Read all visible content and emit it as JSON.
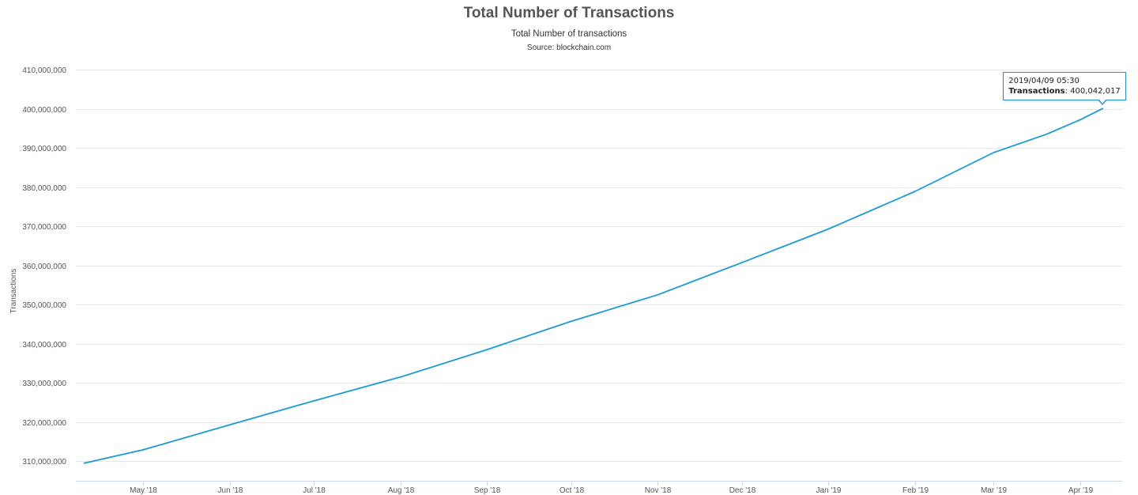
{
  "header": {
    "title": "Total Number of Transactions",
    "subtitle": "Total Number of transactions",
    "source": "Source: blockchain.com"
  },
  "tooltip": {
    "date": "2019/04/09 05:30",
    "label": "Transactions",
    "value": "400,042,017"
  },
  "colors": {
    "line": "#1a9ad6",
    "grid": "#e6e6e6",
    "axis": "#ccd6eb",
    "tooltip_border": "#2a8bd6"
  },
  "chart_data": {
    "type": "line",
    "title": "Total Number of Transactions",
    "subtitle": "Total Number of transactions",
    "ylabel": "Transactions",
    "ylim": [
      305000000,
      410000000
    ],
    "yticks": [
      310000000,
      320000000,
      330000000,
      340000000,
      350000000,
      360000000,
      370000000,
      380000000,
      390000000,
      400000000,
      410000000
    ],
    "ytick_labels": [
      "310,000,000",
      "320,000,000",
      "330,000,000",
      "340,000,000",
      "350,000,000",
      "360,000,000",
      "370,000,000",
      "380,000,000",
      "390,000,000",
      "400,000,000",
      "410,000,000"
    ],
    "xlim": [
      "2018-04-07",
      "2019-04-16"
    ],
    "xticks": [
      "2018-05-01",
      "2018-06-01",
      "2018-07-01",
      "2018-08-01",
      "2018-09-01",
      "2018-10-01",
      "2018-11-01",
      "2018-12-01",
      "2019-01-01",
      "2019-02-01",
      "2019-03-01",
      "2019-04-01"
    ],
    "xtick_labels": [
      "May '18",
      "Jun '18",
      "Jul '18",
      "Aug '18",
      "Sep '18",
      "Oct '18",
      "Nov '18",
      "Dec '18",
      "Jan '19",
      "Feb '19",
      "Mar '19",
      "Apr '19"
    ],
    "grid": true,
    "legend": "none",
    "series": [
      {
        "name": "Transactions",
        "x": [
          "2018-04-10",
          "2018-05-01",
          "2018-06-01",
          "2018-07-01",
          "2018-08-01",
          "2018-09-01",
          "2018-10-01",
          "2018-11-01",
          "2018-12-01",
          "2019-01-01",
          "2019-02-01",
          "2019-03-01",
          "2019-03-20",
          "2019-04-01",
          "2019-04-09"
        ],
        "values": [
          309500000,
          312900000,
          319300000,
          325400000,
          331500000,
          338500000,
          345700000,
          352500000,
          360700000,
          369300000,
          378900000,
          388800000,
          393500000,
          397200000,
          400042017
        ]
      }
    ]
  }
}
